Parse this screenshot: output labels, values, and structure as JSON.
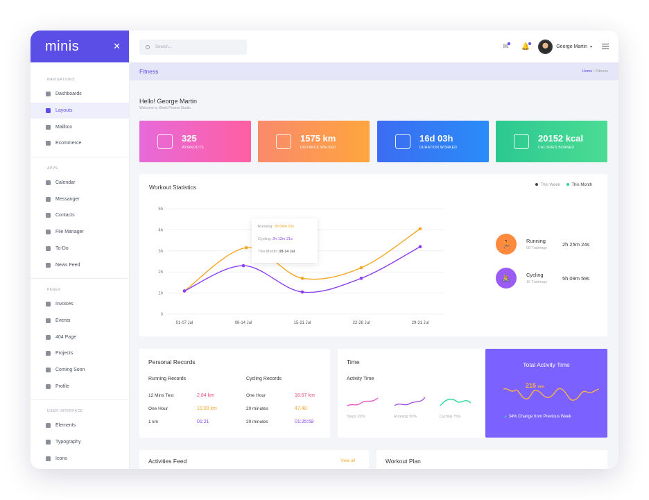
{
  "brand": {
    "name": "minis"
  },
  "sidebar": {
    "sections": [
      {
        "title": "NAVIGATIONS",
        "items": [
          "Dashboards",
          "Layouts",
          "Mailbox",
          "Ecommerce"
        ]
      },
      {
        "title": "APPS",
        "items": [
          "Calendar",
          "Messanger",
          "Contacts",
          "File Manager",
          "To-Do",
          "News Feed"
        ]
      },
      {
        "title": "PAGES",
        "items": [
          "Invoices",
          "Events",
          "404 Page",
          "Projects",
          "Coming Soon",
          "Profile"
        ]
      },
      {
        "title": "USER INTERFACE",
        "items": [
          "Elements",
          "Typography",
          "Icons"
        ]
      }
    ],
    "active": "Layouts"
  },
  "topbar": {
    "search_placeholder": "Search...",
    "user_name": "George Martin"
  },
  "breadcrumb": {
    "page_title": "Fitness",
    "home": "Home",
    "sep": "•",
    "current": "Fitness"
  },
  "greeting": {
    "title": "Hello! George Martin",
    "subtitle": "Welcome to Gleek Fitness Studio"
  },
  "stats": [
    {
      "value": "325",
      "label": "WORKOUTS",
      "gradient": [
        "#e66ad9",
        "#ff5fa2"
      ]
    },
    {
      "value": "1575 km",
      "label": "DISTANCE WALKED",
      "gradient": [
        "#f98a6d",
        "#ffa53d"
      ]
    },
    {
      "value": "16d 03h",
      "label": "DURATION WORKED",
      "gradient": [
        "#3c6cf2",
        "#2a8cf7"
      ]
    },
    {
      "value": "20152 kcal",
      "label": "CALORIES BURNED",
      "gradient": [
        "#2cc891",
        "#4bdc94"
      ]
    }
  ],
  "workout_stats": {
    "title": "Workout Statistics",
    "legend": [
      "This Week",
      "This Month"
    ],
    "tooltip": {
      "running_label": "Running:",
      "running_value": "3h 04m 05s",
      "cycling_label": "Cycling:",
      "cycling_value": "2h 12m 21s",
      "month_label": "This Month:",
      "month_value": "08-14 Jul"
    },
    "summary": [
      {
        "name": "Running",
        "sub": "08 Trainings",
        "time": "2h 25m 24s",
        "color": "#ff8a3d"
      },
      {
        "name": "Cycling",
        "sub": "16 Trainings",
        "time": "5h 09m 59s",
        "color": "#9b5cf6"
      }
    ]
  },
  "chart_data": {
    "type": "line",
    "categories": [
      "01-07 Jul",
      "08-14 Jul",
      "15-21 Jul",
      "22-28 Jul",
      "29-31 Jul"
    ],
    "x": [
      0,
      1,
      2,
      3,
      4
    ],
    "y_ticks": [
      "0",
      "1h",
      "2h",
      "3h",
      "4h",
      "5h"
    ],
    "ylim": [
      0,
      5
    ],
    "series": [
      {
        "color": "#f5a623",
        "points": [
          [
            0,
            1.1
          ],
          [
            1.05,
            3.15
          ],
          [
            2.0,
            1.7
          ],
          [
            3.0,
            2.2
          ],
          [
            4.0,
            4.05
          ]
        ]
      },
      {
        "color": "#8b3df0",
        "points": [
          [
            0,
            1.1
          ],
          [
            1.0,
            2.3
          ],
          [
            2.0,
            1.05
          ],
          [
            3.0,
            1.7
          ],
          [
            4.0,
            3.2
          ]
        ]
      }
    ]
  },
  "personal_records": {
    "title": "Personal Records",
    "running": {
      "title": "Running Records",
      "rows": [
        [
          "12 Mins Test",
          "2.84 km"
        ],
        [
          "One Hour",
          "10.00 km"
        ],
        [
          "1 km",
          "01:21"
        ]
      ]
    },
    "cycling": {
      "title": "Cycling Records",
      "rows": [
        [
          "One Hour",
          "18.67 km"
        ],
        [
          "20 minutes",
          "47.48"
        ],
        [
          "20 minutes",
          "01:25:59"
        ]
      ]
    }
  },
  "time_card": {
    "title": "Time",
    "sub": "Activity Time",
    "items": [
      {
        "label": "Steps 20%",
        "color": "#e654c0"
      },
      {
        "label": "Running 50%",
        "color": "#a04de8"
      },
      {
        "label": "Cycling 75%",
        "color": "#2bd69a"
      }
    ]
  },
  "total_activity": {
    "title": "Total Activity Time",
    "value": "215",
    "unit": "min",
    "change": "34% Change from Previous Week"
  },
  "feed": {
    "title": "Activities Feed",
    "link": "View all"
  },
  "plan": {
    "title": "Workout Plan"
  }
}
